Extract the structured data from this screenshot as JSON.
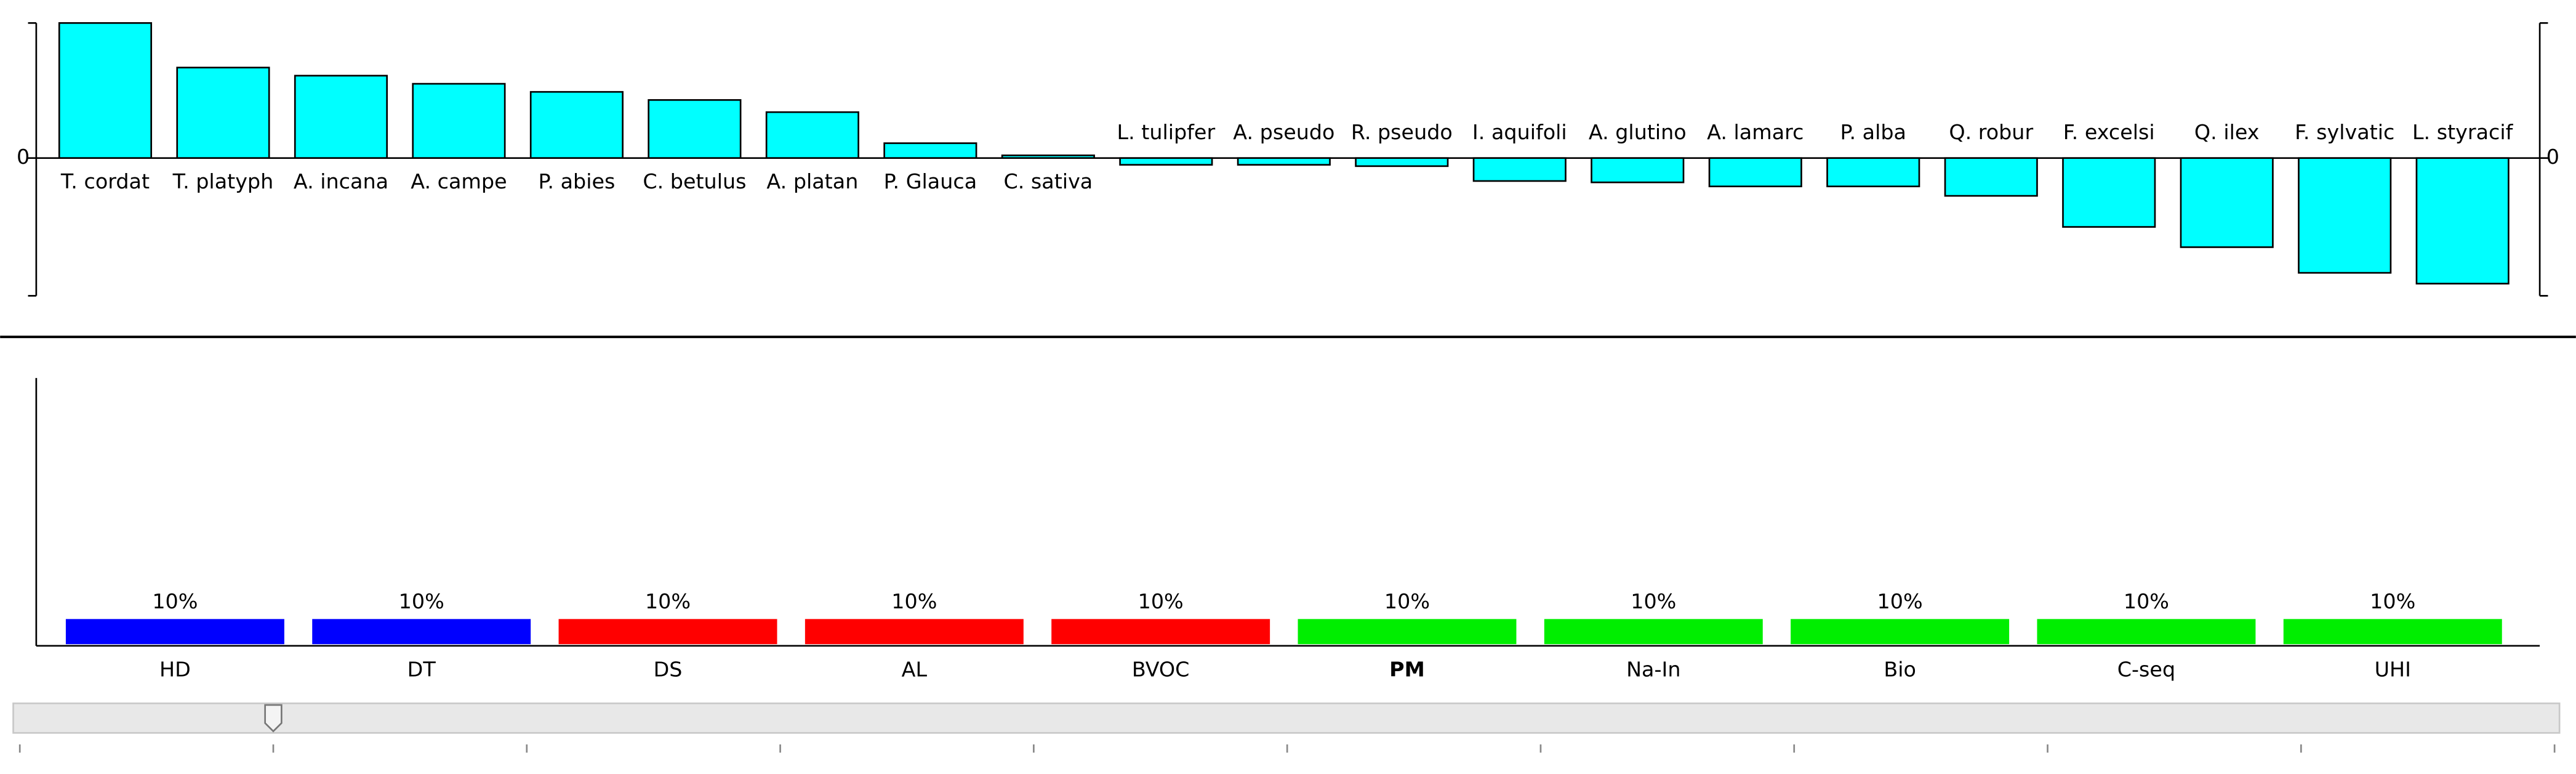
{
  "chart_data": [
    {
      "type": "bar",
      "color": "#00ffff",
      "categories": [
        "T. cordat",
        "T. platyph",
        "A. incana",
        "A. campe",
        "P. abies",
        "C. betulus",
        "A. platan",
        "P. Glauca",
        "C. sativa",
        "L. tulipfer",
        "A. pseudo",
        "R. pseudo",
        "I. aquifoli",
        "A. glutino",
        "A. lamarc",
        "P. alba",
        "Q. robur",
        "F. excelsi",
        "Q. ilex",
        "F. sylvatic",
        "L. styracif"
      ],
      "values": [
        1.0,
        0.67,
        0.61,
        0.55,
        0.49,
        0.43,
        0.34,
        0.11,
        0.02,
        -0.05,
        -0.05,
        -0.06,
        -0.17,
        -0.18,
        -0.21,
        -0.21,
        -0.28,
        -0.51,
        -0.66,
        -0.85,
        -0.93
      ],
      "ylim": [
        -1.02,
        1.0
      ],
      "yticks": [
        0
      ]
    },
    {
      "type": "bar",
      "categories": [
        "HD",
        "DT",
        "DS",
        "AL",
        "BVOC",
        "PM",
        "Na-In",
        "Bio",
        "C-seq",
        "UHI"
      ],
      "values": [
        10,
        10,
        10,
        10,
        10,
        10,
        10,
        10,
        10,
        10
      ],
      "value_labels": [
        "10%",
        "10%",
        "10%",
        "10%",
        "10%",
        "10%",
        "10%",
        "10%",
        "10%",
        "10%"
      ],
      "colors": [
        "#0000ff",
        "#0000ff",
        "#ff0000",
        "#ff0000",
        "#ff0000",
        "#00ee00",
        "#00ee00",
        "#00ee00",
        "#00ee00",
        "#00ee00"
      ],
      "bold_index": 5,
      "ylim": [
        0,
        100
      ]
    }
  ],
  "slider": {
    "min": 0,
    "max": 10,
    "value": 1
  }
}
